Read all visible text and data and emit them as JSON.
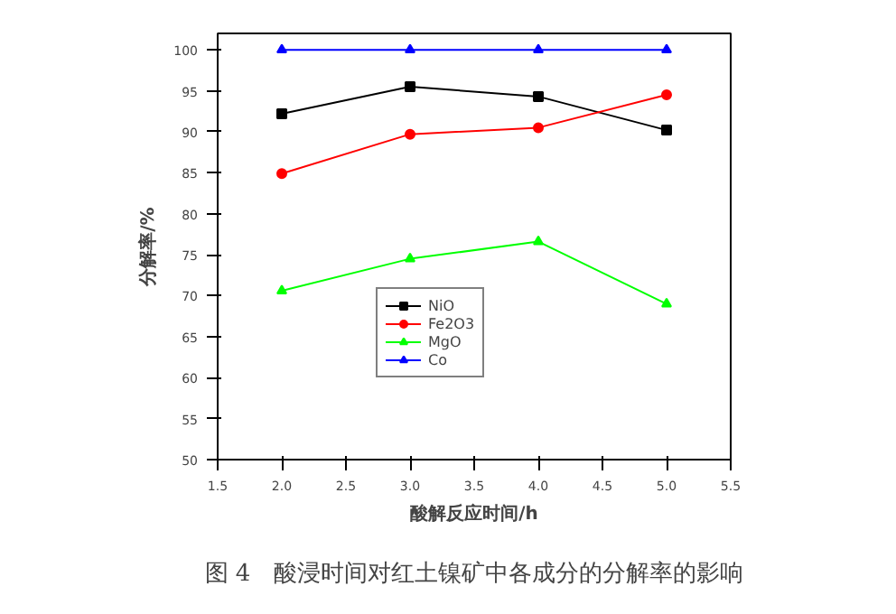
{
  "chart_data": {
    "type": "line",
    "xlabel": "酸解反应时间/h",
    "ylabel": "分解率/%",
    "x": [
      2.0,
      3.0,
      4.0,
      5.0
    ],
    "xlim": [
      1.5,
      5.5
    ],
    "xticks": [
      {
        "value": 1.5,
        "label": "1.5"
      },
      {
        "value": 2.0,
        "label": "2.0"
      },
      {
        "value": 2.5,
        "label": "2.5"
      },
      {
        "value": 3.0,
        "label": "3.0"
      },
      {
        "value": 3.5,
        "label": "3.5"
      },
      {
        "value": 4.0,
        "label": "4.0"
      },
      {
        "value": 4.5,
        "label": "4.5"
      },
      {
        "value": 5.0,
        "label": "5.0"
      },
      {
        "value": 5.5,
        "label": "5.5"
      }
    ],
    "ylim": [
      50,
      102
    ],
    "yticks": [
      50,
      55,
      60,
      65,
      70,
      75,
      80,
      85,
      90,
      95,
      100
    ],
    "series": [
      {
        "name": "NiO",
        "color": "#000000",
        "marker": "square",
        "values": [
          92.2,
          95.5,
          94.3,
          90.2
        ]
      },
      {
        "name": "Fe2O3",
        "color": "#ff0000",
        "marker": "circle",
        "values": [
          84.9,
          89.7,
          90.5,
          94.5
        ]
      },
      {
        "name": "MgO",
        "color": "#00ff00",
        "marker": "triangle",
        "values": [
          70.6,
          74.5,
          76.6,
          69.0
        ]
      },
      {
        "name": "Co",
        "color": "#0000ff",
        "marker": "triangle",
        "values": [
          100,
          100,
          100,
          100
        ]
      }
    ],
    "legend": "center",
    "grid": false,
    "line_style": "solid",
    "annotations": [
      "图 4　酸浸时间对红土镍矿中各成分的分解率的影响"
    ]
  }
}
